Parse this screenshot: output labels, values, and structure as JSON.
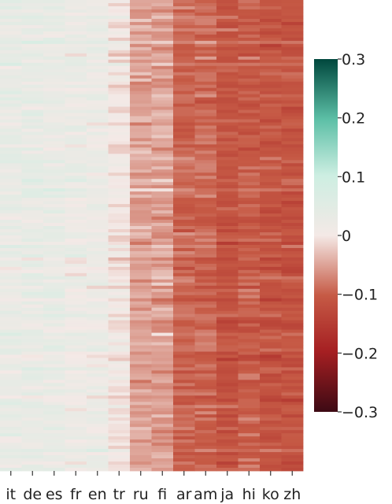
{
  "chart_data": {
    "type": "heatmap",
    "title": "",
    "xlabel": "",
    "ylabel": "",
    "columns": [
      "it",
      "de",
      "es",
      "fr",
      "en",
      "tr",
      "ru",
      "fi",
      "ar",
      "am",
      "ja",
      "hi",
      "ko",
      "zh"
    ],
    "column_mean_values": [
      0.03,
      0.03,
      0.03,
      0.02,
      0.02,
      0.0,
      -0.05,
      -0.05,
      -0.09,
      -0.09,
      -0.11,
      -0.1,
      -0.11,
      -0.11
    ],
    "row_count": 150,
    "colorbar": {
      "range": [
        -0.3,
        0.3
      ],
      "ticks": [
        0.3,
        0.2,
        0.1,
        0,
        -0.1,
        -0.2,
        -0.3
      ],
      "tick_labels": [
        "0.3",
        "0.2",
        "0.1",
        "0",
        "−0.1",
        "−0.2",
        "−0.3"
      ],
      "colors": [
        "#3d0a14",
        "#a51f22",
        "#c65a45",
        "#f4e9e6",
        "#cdeee2",
        "#5cbfa6",
        "#00473d"
      ]
    }
  }
}
